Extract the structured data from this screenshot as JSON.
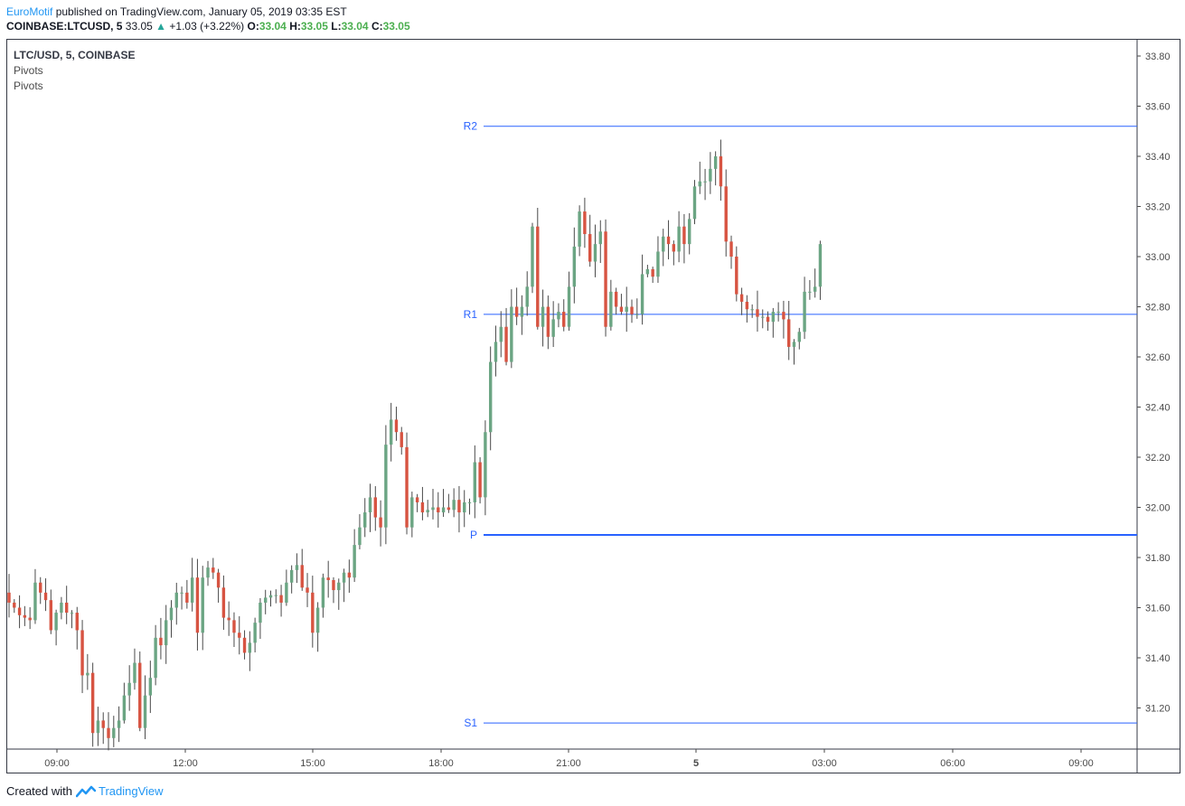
{
  "header": {
    "author": "EuroMotif",
    "published_text": "published on TradingView.com, January 05, 2019 03:35 EST",
    "symbol_line": "COINBASE:LTCUSD, 5",
    "last": "33.05",
    "change_arrow": "▲",
    "change": "+1.03 (+3.22%)",
    "o_label": "O:",
    "o": "33.04",
    "h_label": "H:",
    "h": "33.05",
    "l_label": "L:",
    "l": "33.04",
    "c_label": "C:",
    "c": "33.05"
  },
  "legend": {
    "symbol": "LTC/USD, 5, COINBASE",
    "study1": "Pivots",
    "study2": "Pivots"
  },
  "footer": {
    "created_with": "Created with",
    "brand": "TradingView"
  },
  "colors": {
    "up": "#6ba583",
    "down": "#d75442",
    "pivot": "#2962ff",
    "wick": "#4a4a4a"
  },
  "chart_data": {
    "type": "candlestick",
    "symbol": "LTC/USD",
    "interval": "5",
    "exchange": "COINBASE",
    "ylim": [
      31.05,
      33.87
    ],
    "y_ticks": [
      "33.80",
      "33.60",
      "33.40",
      "33.20",
      "33.00",
      "32.80",
      "32.60",
      "32.40",
      "32.20",
      "32.00",
      "31.80",
      "31.60",
      "31.40",
      "31.20"
    ],
    "x_ticks": [
      "09:00",
      "12:00",
      "15:00",
      "18:00",
      "21:00",
      "5",
      "03:00",
      "06:00",
      "09:00"
    ],
    "pivots": [
      {
        "label": "R2",
        "value": 33.52
      },
      {
        "label": "R1",
        "value": 32.77
      },
      {
        "label": "P",
        "value": 31.89
      },
      {
        "label": "S1",
        "value": 31.14
      }
    ],
    "closes": [
      31.62,
      31.6,
      31.57,
      31.56,
      31.55,
      31.7,
      31.66,
      31.63,
      31.51,
      31.58,
      31.62,
      31.58,
      31.58,
      31.51,
      31.33,
      31.34,
      31.1,
      31.15,
      31.12,
      31.08,
      31.12,
      31.15,
      31.25,
      31.3,
      31.38,
      31.12,
      31.25,
      31.32,
      31.48,
      31.45,
      31.55,
      31.6,
      31.66,
      31.66,
      31.62,
      31.72,
      31.5,
      31.72,
      31.76,
      31.74,
      31.68,
      31.56,
      31.55,
      31.5,
      31.48,
      31.42,
      31.46,
      31.54,
      31.62,
      31.64,
      31.65,
      31.65,
      31.62,
      31.7,
      31.75,
      31.77,
      31.68,
      31.66,
      31.5,
      31.6,
      31.72,
      31.71,
      31.67,
      31.7,
      31.74,
      31.72,
      31.85,
      31.92,
      31.98,
      32.04,
      31.96,
      31.92,
      32.25,
      32.35,
      32.3,
      32.24,
      31.92,
      32.04,
      32.02,
      31.98,
      31.99,
      32.0,
      31.98,
      32.0,
      31.99,
      32.03,
      31.98,
      32.02,
      32.02,
      32.18,
      32.04,
      32.3,
      32.58,
      32.66,
      32.72,
      32.58,
      32.8,
      32.76,
      32.8,
      32.88,
      33.12,
      32.72,
      32.8,
      32.68,
      32.75,
      32.78,
      32.72,
      32.88,
      33.04,
      33.18,
      33.09,
      32.98,
      33.05,
      33.1,
      32.72,
      32.86,
      32.8,
      32.78,
      32.8,
      32.77,
      32.77,
      32.93,
      32.95,
      32.92,
      33.02,
      33.08,
      33.05,
      33.02,
      33.12,
      33.05,
      33.15,
      33.28,
      33.3,
      33.3,
      33.35,
      33.4,
      33.28,
      33.06,
      33.0,
      32.85,
      32.82,
      32.79,
      32.79,
      32.76,
      32.76,
      32.74,
      32.78,
      32.78,
      32.75,
      32.64,
      32.66,
      32.7,
      32.86,
      32.86,
      32.88,
      33.05
    ],
    "last_close": 33.05
  }
}
